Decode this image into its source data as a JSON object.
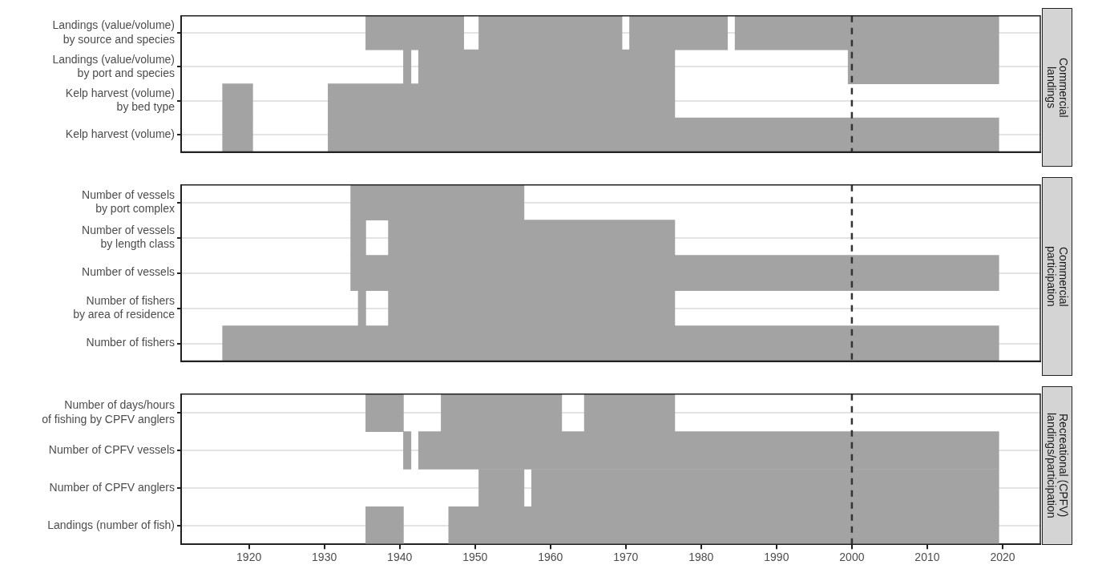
{
  "chart_data": [
    {
      "type": "bar",
      "orientation": "horizontal",
      "title": "Commercial\nlandings",
      "categories": [
        "Landings (value/volume)\nby source and species",
        "Landings (value/volume)\nby port and species",
        "Kelp harvest (volume)\nby bed type",
        "Kelp harvest (volume)"
      ],
      "series": [
        {
          "color": "#a3a3a3",
          "base": [
            1935.5,
            1940.5,
            1916.5,
            1916.5
          ],
          "values": [
            13,
            1,
            4,
            4
          ]
        },
        {
          "color": "#a3a3a3",
          "base": [
            1950.5,
            1942.5,
            1930.5,
            1930.5
          ],
          "values": [
            19,
            34,
            46,
            89
          ]
        },
        {
          "color": "#a3a3a3",
          "base": [
            1970.5,
            1999.5,
            null,
            null
          ],
          "values": [
            13,
            20,
            null,
            null
          ]
        },
        {
          "color": "#a3a3a3",
          "base": [
            1984.5,
            null,
            null,
            null
          ],
          "values": [
            35,
            null,
            null,
            null
          ]
        }
      ],
      "xlim": [
        1911,
        2025
      ],
      "xticks": [
        1920,
        1930,
        1940,
        1950,
        1960,
        1970,
        1980,
        1990,
        2000,
        2010,
        2020
      ],
      "grid": "y",
      "tick_labels": "y",
      "ref_lines": [
        {
          "axis": "x",
          "value": 2000,
          "color": "#333333",
          "line_style": "dashed"
        }
      ]
    },
    {
      "type": "bar",
      "orientation": "horizontal",
      "title": "Commercial\nparticipation",
      "categories": [
        "Number of vessels\nby port complex",
        "Number of vessels\nby length class",
        "Number of vessels",
        "Number of fishers\nby area of residence",
        "Number of fishers"
      ],
      "series": [
        {
          "color": "#a3a3a3",
          "base": [
            1933.5,
            1933.5,
            1933.5,
            1934.5,
            1916.5
          ],
          "values": [
            23,
            2,
            86,
            1,
            103
          ]
        },
        {
          "color": "#a3a3a3",
          "base": [
            null,
            1938.5,
            null,
            1938.5,
            null
          ],
          "values": [
            null,
            38,
            null,
            38,
            null
          ]
        }
      ],
      "xlim": [
        1911,
        2025
      ],
      "xticks": [
        1920,
        1930,
        1940,
        1950,
        1960,
        1970,
        1980,
        1990,
        2000,
        2010,
        2020
      ],
      "grid": "y",
      "tick_labels": "y",
      "ref_lines": [
        {
          "axis": "x",
          "value": 2000,
          "color": "#333333",
          "line_style": "dashed"
        }
      ]
    },
    {
      "type": "bar",
      "orientation": "horizontal",
      "title": "Recreational (CPFV)\nlandings/participation",
      "categories": [
        "Number of days/hours\nof fishing by CPFV anglers",
        "Number of CPFV vessels",
        "Number of CPFV anglers",
        "Landings (number of fish)"
      ],
      "series": [
        {
          "color": "#a3a3a3",
          "base": [
            1935.5,
            1940.5,
            1950.5,
            1935.5
          ],
          "values": [
            5,
            1,
            6,
            5
          ]
        },
        {
          "color": "#a3a3a3",
          "base": [
            1945.5,
            1942.5,
            1957.5,
            1946.5
          ],
          "values": [
            16,
            77,
            62,
            73
          ]
        },
        {
          "color": "#a3a3a3",
          "base": [
            1964.5,
            null,
            null,
            null
          ],
          "values": [
            12,
            null,
            null,
            null
          ]
        }
      ],
      "xlim": [
        1911,
        2025
      ],
      "xticks": [
        1920,
        1930,
        1940,
        1950,
        1960,
        1970,
        1980,
        1990,
        2000,
        2010,
        2020
      ],
      "grid": "y",
      "ref_lines": [
        {
          "axis": "x",
          "value": 2000,
          "color": "#333333",
          "line_style": "dashed"
        }
      ]
    }
  ]
}
